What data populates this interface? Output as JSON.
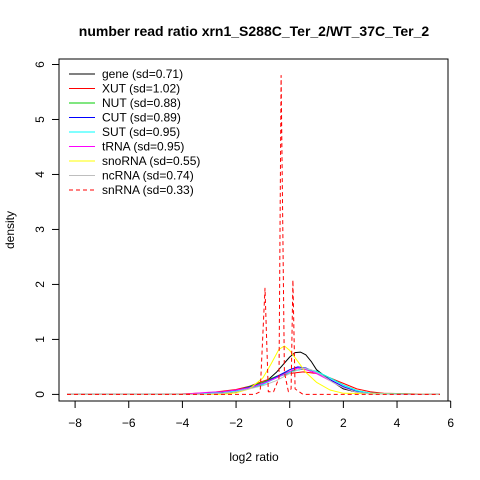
{
  "chart_data": {
    "type": "line",
    "title": "number read ratio xrn1_S288C_Ter_2/WT_37C_Ter_2",
    "xlabel": "log2 ratio",
    "ylabel": "density",
    "xlim": [
      -8.6,
      5.9
    ],
    "ylim": [
      -0.12,
      6.1
    ],
    "xticks": [
      -8,
      -6,
      -4,
      -2,
      0,
      2,
      4,
      6
    ],
    "yticks": [
      0,
      1,
      2,
      3,
      4,
      5,
      6
    ],
    "grid": false,
    "legend_position": "top-left",
    "series": [
      {
        "name": "gene (sd=0.71)",
        "color": "#000000",
        "dash": "solid",
        "x": [
          -8.3,
          -4.0,
          -3.0,
          -2.0,
          -1.0,
          -0.5,
          0.0,
          0.2,
          0.4,
          0.6,
          0.8,
          1.0,
          1.5,
          2.0,
          2.5,
          3.0,
          3.5,
          5.6
        ],
        "y": [
          0,
          0,
          0.01,
          0.04,
          0.18,
          0.4,
          0.68,
          0.76,
          0.77,
          0.72,
          0.6,
          0.45,
          0.26,
          0.1,
          0.04,
          0.02,
          0.01,
          0
        ]
      },
      {
        "name": "XUT (sd=1.02)",
        "color": "#ff0000",
        "dash": "solid",
        "x": [
          -8.3,
          -5.0,
          -4.0,
          -3.0,
          -2.0,
          -1.5,
          -1.0,
          -0.5,
          0.0,
          0.5,
          1.0,
          1.5,
          2.0,
          2.5,
          3.0,
          3.5,
          5.6
        ],
        "y": [
          0,
          0,
          0.01,
          0.03,
          0.09,
          0.15,
          0.24,
          0.32,
          0.38,
          0.41,
          0.38,
          0.3,
          0.2,
          0.1,
          0.05,
          0.02,
          0
        ]
      },
      {
        "name": "NUT (sd=0.88)",
        "color": "#00cd00",
        "dash": "solid",
        "x": [
          -8.3,
          -4.0,
          -3.0,
          -2.0,
          -1.0,
          -0.5,
          0.0,
          0.5,
          1.0,
          1.5,
          2.0,
          2.5,
          3.0,
          5.6
        ],
        "y": [
          0,
          0,
          0.02,
          0.07,
          0.22,
          0.33,
          0.42,
          0.46,
          0.42,
          0.3,
          0.17,
          0.07,
          0.02,
          0
        ]
      },
      {
        "name": "CUT (sd=0.89)",
        "color": "#0000ff",
        "dash": "solid",
        "x": [
          -8.3,
          -4.0,
          -3.0,
          -2.0,
          -1.0,
          -0.5,
          0.0,
          0.3,
          0.6,
          1.0,
          1.5,
          2.0,
          2.5,
          3.0,
          5.6
        ],
        "y": [
          0,
          0,
          0.02,
          0.07,
          0.2,
          0.32,
          0.45,
          0.5,
          0.48,
          0.4,
          0.27,
          0.14,
          0.05,
          0.01,
          0
        ]
      },
      {
        "name": "SUT (sd=0.95)",
        "color": "#00ffff",
        "dash": "solid",
        "x": [
          -8.3,
          -4.0,
          -3.0,
          -2.0,
          -1.0,
          -0.5,
          0.0,
          0.5,
          1.0,
          1.5,
          2.0,
          2.5,
          3.0,
          5.6
        ],
        "y": [
          0,
          0,
          0.02,
          0.06,
          0.18,
          0.3,
          0.4,
          0.47,
          0.42,
          0.3,
          0.17,
          0.07,
          0.02,
          0
        ]
      },
      {
        "name": "tRNA (sd=0.95)",
        "color": "#ff00ff",
        "dash": "solid",
        "x": [
          -8.3,
          -4.0,
          -3.5,
          -3.0,
          -2.5,
          -2.0,
          -1.5,
          -1.0,
          -0.5,
          0.0,
          0.3,
          0.6,
          1.0,
          1.5,
          2.0,
          2.5,
          3.0,
          5.6
        ],
        "y": [
          0,
          0,
          0.02,
          0.04,
          0.05,
          0.08,
          0.12,
          0.2,
          0.3,
          0.42,
          0.48,
          0.45,
          0.38,
          0.25,
          0.12,
          0.04,
          0.01,
          0
        ]
      },
      {
        "name": "snoRNA (sd=0.55)",
        "color": "#ffff00",
        "dash": "solid",
        "x": [
          -8.3,
          -2.5,
          -2.0,
          -1.5,
          -1.0,
          -0.7,
          -0.4,
          -0.2,
          0.0,
          0.3,
          0.6,
          1.0,
          1.5,
          2.0,
          5.6
        ],
        "y": [
          0,
          0,
          0.03,
          0.1,
          0.3,
          0.55,
          0.82,
          0.88,
          0.8,
          0.6,
          0.4,
          0.22,
          0.08,
          0.02,
          0
        ]
      },
      {
        "name": "ncRNA (sd=0.74)",
        "color": "#bebebe",
        "dash": "solid",
        "x": [
          -8.3,
          -3.5,
          -2.5,
          -2.0,
          -1.5,
          -1.0,
          -0.5,
          0.0,
          0.3,
          0.5,
          0.8,
          1.2,
          1.6,
          2.0,
          2.5,
          3.0,
          5.6
        ],
        "y": [
          0,
          0,
          0.02,
          0.05,
          0.1,
          0.16,
          0.25,
          0.38,
          0.45,
          0.48,
          0.45,
          0.35,
          0.22,
          0.12,
          0.04,
          0.01,
          0
        ]
      },
      {
        "name": "snRNA (sd=0.33)",
        "color": "#ff0000",
        "dash": "dashed",
        "x": [
          -8.3,
          -1.3,
          -1.1,
          -0.92,
          -0.8,
          -0.6,
          -0.4,
          -0.32,
          -0.2,
          -0.05,
          0.05,
          0.12,
          0.2,
          0.35,
          0.5,
          5.6
        ],
        "y": [
          0,
          0,
          0.05,
          1.93,
          0.05,
          0.05,
          0.3,
          5.8,
          0.4,
          0.05,
          0.1,
          2.08,
          0.1,
          0.05,
          0,
          0
        ]
      }
    ]
  }
}
